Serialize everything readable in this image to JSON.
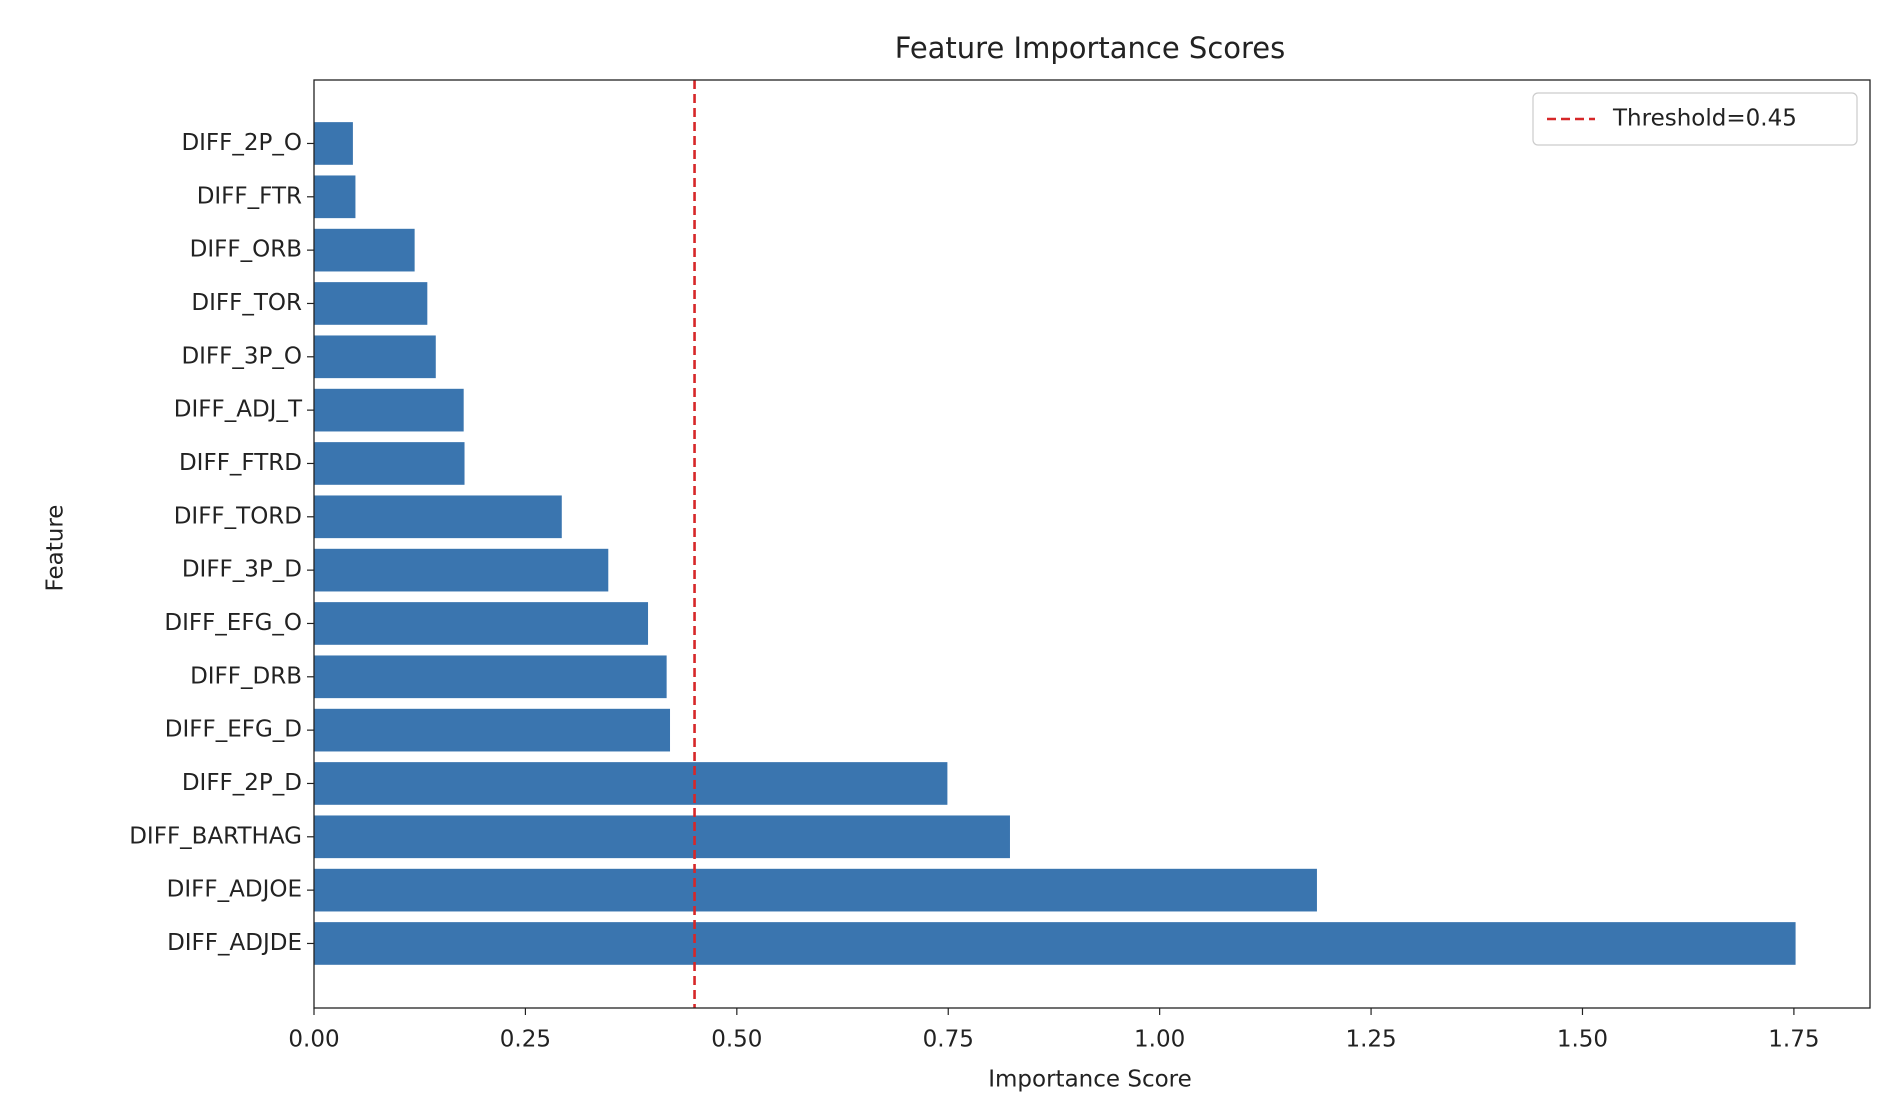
{
  "chart_data": {
    "type": "barh",
    "title": "Feature Importance Scores",
    "x_label": "Importance Score",
    "y_label": "Feature",
    "categories": [
      "DIFF_ADJDE",
      "DIFF_ADJOE",
      "DIFF_BARTHAG",
      "DIFF_2P_D",
      "DIFF_EFG_D",
      "DIFF_DRB",
      "DIFF_EFG_O",
      "DIFF_3P_D",
      "DIFF_TORD",
      "DIFF_FTRD",
      "DIFF_ADJ_T",
      "DIFF_3P_O",
      "DIFF_TOR",
      "DIFF_ORB",
      "DIFF_FTR",
      "DIFF_2P_O"
    ],
    "values": [
      1.752,
      1.186,
      0.823,
      0.749,
      0.421,
      0.417,
      0.395,
      0.348,
      0.293,
      0.178,
      0.177,
      0.144,
      0.134,
      0.119,
      0.049,
      0.046
    ],
    "color": "#3a75af",
    "xlim": [
      0,
      1.84
    ],
    "xticks": [
      {
        "value": 0,
        "label": "0.00"
      },
      {
        "value": 0.25,
        "label": "0.25"
      },
      {
        "value": 0.5,
        "label": "0.50"
      },
      {
        "value": 0.75,
        "label": "0.75"
      },
      {
        "value": 1,
        "label": "1.00"
      },
      {
        "value": 1.25,
        "label": "1.25"
      },
      {
        "value": 1.5,
        "label": "1.50"
      },
      {
        "value": 1.75,
        "label": "1.75"
      }
    ],
    "threshold": {
      "value": 0.45,
      "label": "Threshold=0.45",
      "color": "#d62728"
    },
    "legend": "upper right",
    "grid": false
  }
}
